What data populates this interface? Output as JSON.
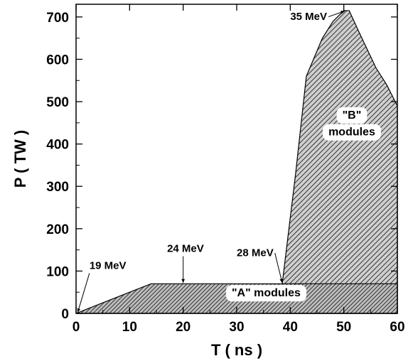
{
  "chart_data": {
    "type": "area",
    "xlabel": "T ( ns )",
    "ylabel": "P ( TW )",
    "xlim": [
      0,
      60
    ],
    "ylim": [
      0,
      730
    ],
    "xticks": [
      0,
      10,
      20,
      30,
      40,
      50,
      60
    ],
    "yticks": [
      0,
      100,
      200,
      300,
      400,
      500,
      600,
      700
    ],
    "grid": false,
    "series": [
      {
        "x": [
          0,
          5,
          10,
          14,
          20,
          30,
          39,
          45,
          50,
          55,
          60
        ],
        "y": [
          0,
          25,
          50,
          70,
          70,
          70,
          70,
          70,
          70,
          70,
          70
        ]
      },
      {
        "x": [
          38.5,
          41,
          43,
          46,
          48,
          50,
          51,
          53,
          56,
          58,
          60
        ],
        "y": [
          70,
          330,
          560,
          650,
          690,
          715,
          715,
          660,
          580,
          540,
          490
        ]
      }
    ],
    "region_labels": [
      {
        "text": "\"A\" modules",
        "x": 35.5,
        "y": 40
      },
      {
        "text": "\"B\"",
        "x": 51.5,
        "y": 460
      },
      {
        "text": "modules",
        "x": 51.5,
        "y": 420
      }
    ],
    "annotations": [
      {
        "text": "19 MeV",
        "text_x": 2.5,
        "text_y": 105,
        "point_x": 0.3,
        "point_y": 2
      },
      {
        "text": "24 MeV",
        "text_x": 17,
        "text_y": 145,
        "point_x": 20,
        "point_y": 72
      },
      {
        "text": "28 MeV",
        "text_x": 30,
        "text_y": 135,
        "point_x": 38.5,
        "point_y": 72
      },
      {
        "text": "35 MeV",
        "text_x": 40,
        "text_y": 693,
        "point_x": 50.2,
        "point_y": 714
      }
    ]
  }
}
